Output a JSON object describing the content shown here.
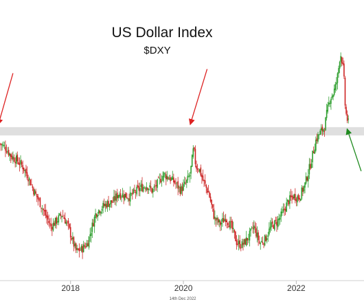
{
  "chart_data": {
    "type": "candlestick",
    "title": "US Dollar Index",
    "subtitle": "$DXY",
    "x_tick_labels": [
      "2018",
      "2020",
      "2022"
    ],
    "footer_date_label": "14th Dec 2022",
    "x_range": [
      2016.75,
      2023.2
    ],
    "y_range": [
      86,
      118
    ],
    "grid": false,
    "legend": "none",
    "colors": {
      "up": "#2e9e2e",
      "down": "#cc2222",
      "band": "#dcdcdc",
      "red_arrow": "#dd2222",
      "green_arrow": "#1e8a1e"
    },
    "support_band": {
      "y_low": 103.5,
      "y_high": 104.5
    },
    "annotations": [
      {
        "type": "arrow",
        "color": "red",
        "from": [
          2016.98,
          111.0
        ],
        "to": [
          2016.72,
          104.8
        ]
      },
      {
        "type": "arrow",
        "color": "red",
        "from": [
          2020.42,
          111.5
        ],
        "to": [
          2020.12,
          104.8
        ]
      },
      {
        "type": "arrow",
        "color": "green",
        "from": [
          2023.15,
          99.2
        ],
        "to": [
          2022.9,
          104.3
        ]
      }
    ],
    "series": [
      {
        "values": [
          [
            2016.75,
            102.5
          ],
          [
            2016.85,
            102.0
          ],
          [
            2016.95,
            101.0
          ],
          [
            2017.05,
            100.5
          ],
          [
            2017.15,
            99.8
          ],
          [
            2017.25,
            98.5
          ],
          [
            2017.35,
            96.8
          ],
          [
            2017.45,
            95.5
          ],
          [
            2017.55,
            94.0
          ],
          [
            2017.65,
            92.5
          ],
          [
            2017.75,
            93.2
          ],
          [
            2017.85,
            94.0
          ],
          [
            2017.95,
            92.7
          ],
          [
            2018.05,
            90.5
          ],
          [
            2018.1,
            89.5
          ],
          [
            2018.2,
            89.8
          ],
          [
            2018.3,
            90.5
          ],
          [
            2018.38,
            92.5
          ],
          [
            2018.45,
            94.2
          ],
          [
            2018.55,
            94.8
          ],
          [
            2018.65,
            95.3
          ],
          [
            2018.75,
            95.5
          ],
          [
            2018.85,
            96.5
          ],
          [
            2018.95,
            96.3
          ],
          [
            2019.05,
            96.1
          ],
          [
            2019.15,
            96.7
          ],
          [
            2019.25,
            97.2
          ],
          [
            2019.35,
            97.5
          ],
          [
            2019.45,
            96.8
          ],
          [
            2019.55,
            97.8
          ],
          [
            2019.65,
            98.8
          ],
          [
            2019.75,
            98.4
          ],
          [
            2019.85,
            97.8
          ],
          [
            2019.95,
            96.9
          ],
          [
            2020.05,
            97.8
          ],
          [
            2020.12,
            98.8
          ],
          [
            2020.18,
            102.0
          ],
          [
            2020.22,
            99.8
          ],
          [
            2020.28,
            99.5
          ],
          [
            2020.35,
            98.0
          ],
          [
            2020.45,
            96.5
          ],
          [
            2020.55,
            93.5
          ],
          [
            2020.65,
            92.8
          ],
          [
            2020.75,
            93.6
          ],
          [
            2020.85,
            92.5
          ],
          [
            2020.95,
            90.5
          ],
          [
            2021.05,
            90.3
          ],
          [
            2021.15,
            91.2
          ],
          [
            2021.25,
            92.5
          ],
          [
            2021.35,
            90.5
          ],
          [
            2021.45,
            91.0
          ],
          [
            2021.55,
            92.5
          ],
          [
            2021.65,
            93.0
          ],
          [
            2021.75,
            94.0
          ],
          [
            2021.85,
            95.5
          ],
          [
            2021.95,
            96.2
          ],
          [
            2022.05,
            96.0
          ],
          [
            2022.15,
            97.5
          ],
          [
            2022.25,
            100.0
          ],
          [
            2022.35,
            103.0
          ],
          [
            2022.42,
            103.8
          ],
          [
            2022.5,
            104.5
          ],
          [
            2022.55,
            106.5
          ],
          [
            2022.6,
            108.0
          ],
          [
            2022.65,
            108.5
          ],
          [
            2022.7,
            109.5
          ],
          [
            2022.74,
            111.0
          ],
          [
            2022.78,
            113.5
          ],
          [
            2022.81,
            112.5
          ],
          [
            2022.84,
            111.0
          ],
          [
            2022.87,
            106.5
          ],
          [
            2022.9,
            105.5
          ],
          [
            2022.94,
            104.6
          ]
        ]
      }
    ]
  }
}
